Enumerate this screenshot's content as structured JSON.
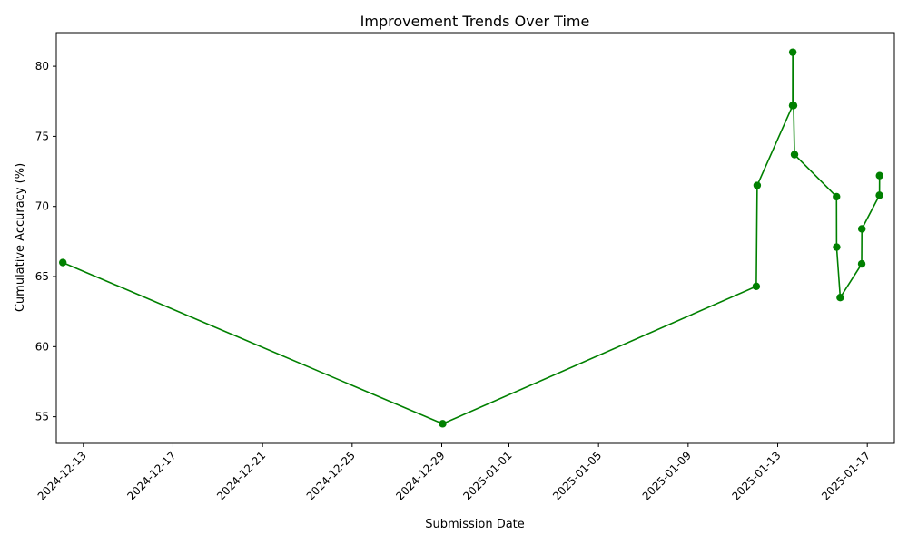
{
  "chart_data": {
    "type": "line",
    "title": "Improvement Trends Over Time",
    "xlabel": "Submission Date",
    "ylabel": "Cumulative Accuracy (%)",
    "x_ticks": [
      "2024-12-13",
      "2024-12-17",
      "2024-12-21",
      "2024-12-25",
      "2024-12-29",
      "2025-01-01",
      "2025-01-05",
      "2025-01-09",
      "2025-01-13",
      "2025-01-17"
    ],
    "y_ticks": [
      55,
      60,
      65,
      70,
      75,
      80
    ],
    "xlim": [
      "2024-12-11T19:00",
      "2025-01-18T05:00"
    ],
    "ylim": [
      53.1,
      82.4
    ],
    "grid": false,
    "legend": "none",
    "series": [
      {
        "color": "#008000",
        "marker": "circle",
        "points": [
          {
            "x": "2024-12-12T02:00",
            "y": 66.0
          },
          {
            "x": "2024-12-29T01:00",
            "y": 54.5
          },
          {
            "x": "2025-01-12T01:00",
            "y": 64.3
          },
          {
            "x": "2025-01-12T02:00",
            "y": 71.5
          },
          {
            "x": "2025-01-13T16:00",
            "y": 77.2
          },
          {
            "x": "2025-01-13T16:10",
            "y": 81.0
          },
          {
            "x": "2025-01-13T17:00",
            "y": 77.2
          },
          {
            "x": "2025-01-13T18:00",
            "y": 73.7
          },
          {
            "x": "2025-01-15T15:00",
            "y": 70.7
          },
          {
            "x": "2025-01-15T15:10",
            "y": 67.1
          },
          {
            "x": "2025-01-15T19:00",
            "y": 63.5
          },
          {
            "x": "2025-01-16T18:00",
            "y": 65.9
          },
          {
            "x": "2025-01-16T18:10",
            "y": 68.4
          },
          {
            "x": "2025-01-17T13:00",
            "y": 70.8
          },
          {
            "x": "2025-01-17T13:10",
            "y": 72.2
          }
        ]
      }
    ]
  }
}
